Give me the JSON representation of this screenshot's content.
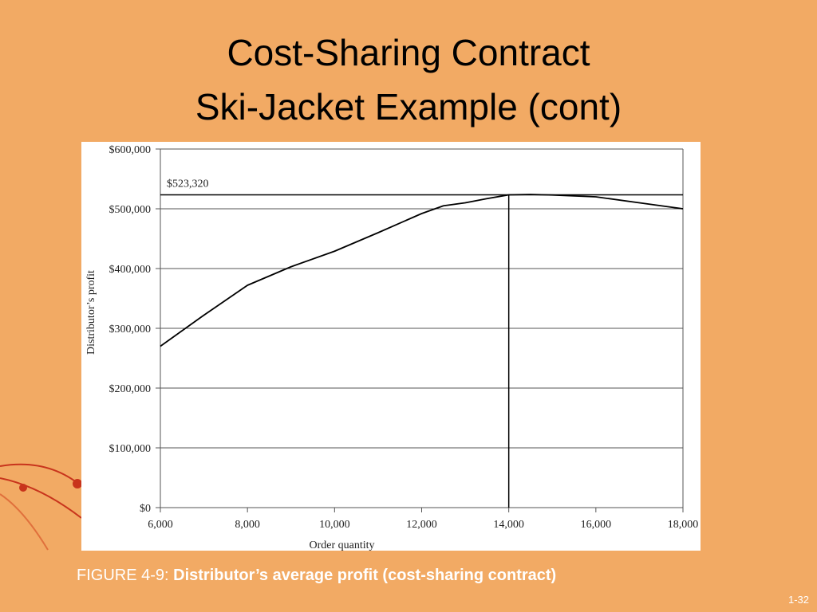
{
  "slide": {
    "title_lines": [
      "Cost-Sharing Contract",
      "Ski-Jacket Example (cont)"
    ],
    "caption": {
      "label": "FIGURE 4-9:",
      "text": "Distributor’s average profit (cost-sharing contract)"
    },
    "page_number": "1-32"
  },
  "chart_data": {
    "type": "line",
    "x_label": "Order quantity",
    "y_label": "Distributor’s profit",
    "x": [
      6000,
      7000,
      8000,
      9000,
      10000,
      11000,
      12000,
      12500,
      13000,
      13500,
      14000,
      14500,
      15000,
      16000,
      17000,
      18000
    ],
    "series": [
      {
        "color": "#000000",
        "values": [
          270000,
          322000,
          372000,
          403000,
          429000,
          460000,
          492000,
          505000,
          510000,
          517000,
          523320,
          524000,
          523000,
          520000,
          510000,
          500000
        ]
      }
    ],
    "xlim": [
      6000,
      18000
    ],
    "xticks": [
      {
        "value": 6000,
        "label": "6,000"
      },
      {
        "value": 8000,
        "label": "8,000"
      },
      {
        "value": 10000,
        "label": "10,000"
      },
      {
        "value": 12000,
        "label": "12,000"
      },
      {
        "value": 14000,
        "label": "14,000"
      },
      {
        "value": 16000,
        "label": "16,000"
      },
      {
        "value": 18000,
        "label": "18,000"
      }
    ],
    "ylim": [
      0,
      600000
    ],
    "yticks": [
      {
        "value": 0,
        "label": "$0"
      },
      {
        "value": 100000,
        "label": "$100,000"
      },
      {
        "value": 200000,
        "label": "$200,000"
      },
      {
        "value": 300000,
        "label": "$300,000"
      },
      {
        "value": 400000,
        "label": "$400,000"
      },
      {
        "value": 500000,
        "label": "$500,000"
      },
      {
        "value": 600000,
        "label": "$600,000"
      }
    ],
    "grid": true,
    "annotation": {
      "label": "$523,320",
      "value": 523320,
      "x": 14000
    }
  }
}
